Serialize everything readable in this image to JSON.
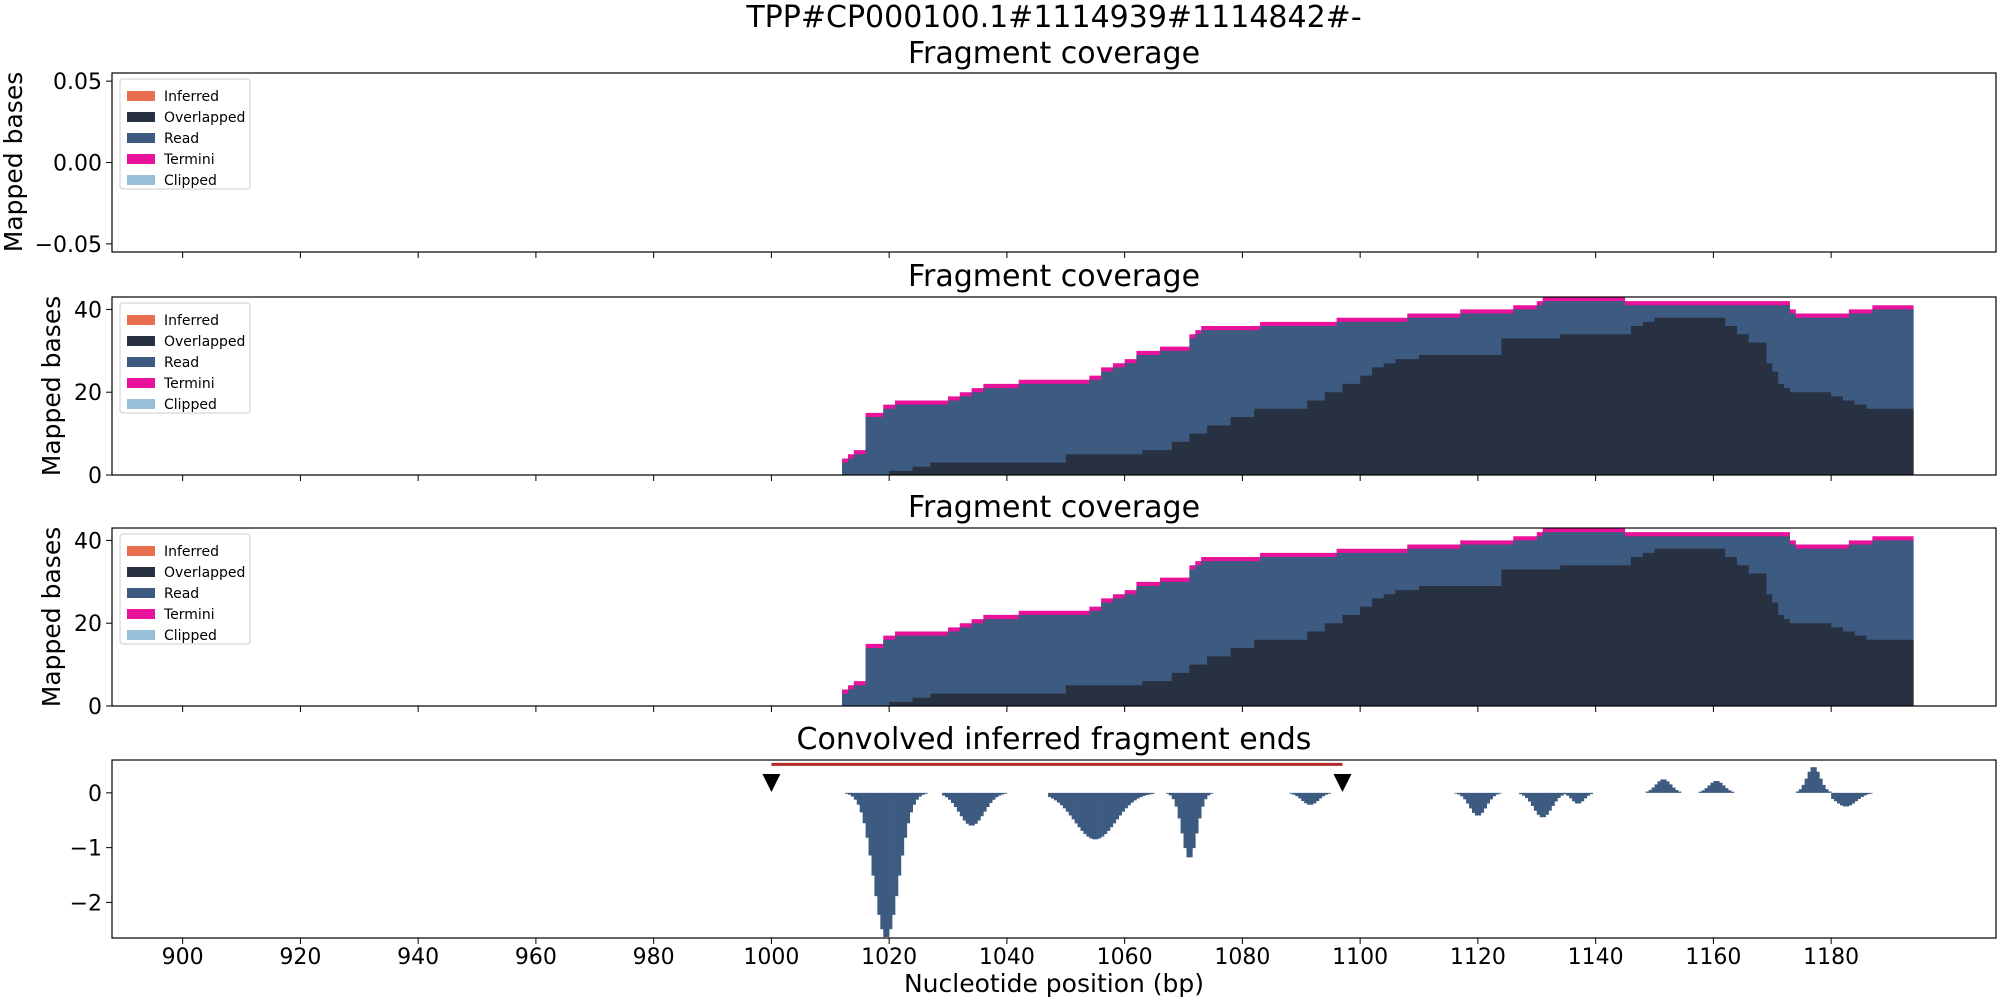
{
  "figure": {
    "title": "TPP#CP000100.1#1114939#1114842#-",
    "xlabel": "Nucleotide position (bp)",
    "xticks": [
      900,
      920,
      940,
      960,
      980,
      1000,
      1020,
      1040,
      1060,
      1080,
      1100,
      1120,
      1140,
      1160,
      1180
    ],
    "xlim": [
      888,
      1208
    ]
  },
  "chart_data": [
    {
      "type": "area",
      "title": "Fragment coverage",
      "ylabel": "Mapped bases",
      "ylim": [
        -0.055,
        0.055
      ],
      "yticks": [
        0.05,
        0.0,
        -0.05
      ],
      "ytick_labels": [
        "0.05",
        "0.00",
        "−0.05"
      ],
      "legend": {
        "position": "upper-left",
        "entries": [
          {
            "label": "Inferred",
            "color": "#e8704f"
          },
          {
            "label": "Overlapped",
            "color": "#283142"
          },
          {
            "label": "Read",
            "color": "#3d5a80"
          },
          {
            "label": "Termini",
            "color": "#e9129b"
          },
          {
            "label": "Clipped",
            "color": "#98c1d9"
          }
        ]
      },
      "series": []
    },
    {
      "type": "area",
      "title": "Fragment coverage",
      "ylabel": "Mapped bases",
      "ylim": [
        0,
        43
      ],
      "yticks": [
        0,
        20,
        40
      ],
      "ytick_labels": [
        "0",
        "20",
        "40"
      ],
      "legend": {
        "position": "upper-left",
        "entries": [
          {
            "label": "Inferred",
            "color": "#e8704f"
          },
          {
            "label": "Overlapped",
            "color": "#283142"
          },
          {
            "label": "Read",
            "color": "#3d5a80"
          },
          {
            "label": "Termini",
            "color": "#e9129b"
          },
          {
            "label": "Clipped",
            "color": "#98c1d9"
          }
        ]
      },
      "x_total": [
        1012,
        1013,
        1014,
        1016,
        1019,
        1020,
        1021,
        1022,
        1030,
        1032,
        1034,
        1036,
        1042,
        1054,
        1056,
        1058,
        1060,
        1062,
        1066,
        1071,
        1072,
        1073,
        1083,
        1096,
        1108,
        1117,
        1119,
        1126,
        1130,
        1131,
        1142,
        1144,
        1145,
        1158,
        1172,
        1173,
        1174,
        1178,
        1179,
        1183,
        1184,
        1187,
        1194
      ],
      "y_total": [
        4,
        5,
        6,
        15,
        17,
        17,
        18,
        18,
        19,
        20,
        21,
        22,
        23,
        24,
        26,
        27,
        28,
        30,
        31,
        34,
        35,
        36,
        37,
        38,
        39,
        40,
        40,
        41,
        42,
        43,
        43,
        43,
        42,
        42,
        42,
        40,
        39,
        39,
        39,
        40,
        40,
        41,
        41
      ],
      "x_overlap": [
        1012,
        1020,
        1024,
        1027,
        1050,
        1063,
        1068,
        1071,
        1074,
        1078,
        1082,
        1091,
        1094,
        1097,
        1100,
        1102,
        1104,
        1106,
        1110,
        1124,
        1134,
        1146,
        1148,
        1150,
        1162,
        1164,
        1166,
        1169,
        1170,
        1171,
        1172,
        1173,
        1175,
        1180,
        1182,
        1184,
        1186,
        1194
      ],
      "y_overlap": [
        0,
        1,
        2,
        3,
        5,
        6,
        8,
        10,
        12,
        14,
        16,
        18,
        20,
        22,
        24,
        26,
        27,
        28,
        29,
        33,
        34,
        36,
        37,
        38,
        36,
        34,
        32,
        27,
        25,
        22,
        21,
        20,
        20,
        19,
        18,
        17,
        16,
        16
      ],
      "termini_thickness": 1
    },
    {
      "type": "area",
      "title": "Fragment coverage",
      "ylabel": "Mapped bases",
      "ylim": [
        0,
        43
      ],
      "yticks": [
        0,
        20,
        40
      ],
      "ytick_labels": [
        "0",
        "20",
        "40"
      ],
      "legend": {
        "position": "upper-left",
        "entries": [
          {
            "label": "Inferred",
            "color": "#e8704f"
          },
          {
            "label": "Overlapped",
            "color": "#283142"
          },
          {
            "label": "Read",
            "color": "#3d5a80"
          },
          {
            "label": "Termini",
            "color": "#e9129b"
          },
          {
            "label": "Clipped",
            "color": "#98c1d9"
          }
        ]
      },
      "x_total": [
        1012,
        1013,
        1014,
        1016,
        1019,
        1020,
        1021,
        1022,
        1030,
        1032,
        1034,
        1036,
        1042,
        1054,
        1056,
        1058,
        1060,
        1062,
        1066,
        1071,
        1072,
        1073,
        1083,
        1096,
        1108,
        1117,
        1119,
        1126,
        1130,
        1131,
        1142,
        1144,
        1145,
        1158,
        1172,
        1173,
        1174,
        1178,
        1179,
        1183,
        1184,
        1187,
        1194
      ],
      "y_total": [
        4,
        5,
        6,
        15,
        17,
        17,
        18,
        18,
        19,
        20,
        21,
        22,
        23,
        24,
        26,
        27,
        28,
        30,
        31,
        34,
        35,
        36,
        37,
        38,
        39,
        40,
        40,
        41,
        42,
        43,
        43,
        43,
        42,
        42,
        42,
        40,
        39,
        39,
        39,
        40,
        40,
        41,
        41
      ],
      "x_overlap": [
        1012,
        1020,
        1024,
        1027,
        1050,
        1063,
        1068,
        1071,
        1074,
        1078,
        1082,
        1091,
        1094,
        1097,
        1100,
        1102,
        1104,
        1106,
        1110,
        1124,
        1134,
        1146,
        1148,
        1150,
        1162,
        1164,
        1166,
        1169,
        1170,
        1171,
        1172,
        1173,
        1175,
        1180,
        1182,
        1184,
        1186,
        1194
      ],
      "y_overlap": [
        0,
        1,
        2,
        3,
        5,
        6,
        8,
        10,
        12,
        14,
        16,
        18,
        20,
        22,
        24,
        26,
        27,
        28,
        29,
        33,
        34,
        36,
        37,
        38,
        36,
        34,
        32,
        27,
        25,
        22,
        21,
        20,
        20,
        19,
        18,
        17,
        16,
        16
      ],
      "termini_thickness": 1
    },
    {
      "type": "bar",
      "title": "Convolved inferred fragment ends",
      "ylim": [
        -2.65,
        0.6
      ],
      "yticks": [
        0,
        -1,
        -2
      ],
      "ytick_labels": [
        "0",
        "−1",
        "−2"
      ],
      "bar_color": "#3d5a80",
      "bars": [
        {
          "x0": 1009,
          "x1": 1027,
          "peak": -2.65,
          "center": 1019.5,
          "width": 3
        },
        {
          "x0": 1029,
          "x1": 1041,
          "peak": -0.6,
          "center": 1034,
          "width": 3
        },
        {
          "x0": 1047,
          "x1": 1065,
          "peak": -0.85,
          "center": 1055,
          "width": 5
        },
        {
          "x0": 1066,
          "x1": 1076,
          "peak": -1.2,
          "center": 1071,
          "width": 1.8
        },
        {
          "x0": 1088,
          "x1": 1095,
          "peak": -0.22,
          "center": 1091.5,
          "width": 2
        },
        {
          "x0": 1115,
          "x1": 1124,
          "peak": -0.42,
          "center": 1120,
          "width": 2
        },
        {
          "x0": 1127,
          "x1": 1139,
          "peak": -0.45,
          "center": 1131,
          "width": 2.2
        },
        {
          "x0": 1134,
          "x1": 1140,
          "peak": -0.2,
          "center": 1137,
          "width": 1.5
        },
        {
          "x0": 1148,
          "x1": 1155,
          "peak": 0.25,
          "center": 1151.5,
          "width": 1.8
        },
        {
          "x0": 1157,
          "x1": 1164,
          "peak": 0.22,
          "center": 1160.5,
          "width": 1.8
        },
        {
          "x0": 1173,
          "x1": 1180,
          "peak": 0.48,
          "center": 1177,
          "width": 1.6
        },
        {
          "x0": 1180,
          "x1": 1192,
          "peak": -0.25,
          "center": 1182.5,
          "width": 2.5
        }
      ],
      "annotations": {
        "markers": [
          {
            "x": 1000,
            "y": 0.18
          },
          {
            "x": 1097,
            "y": 0.18
          }
        ],
        "span": {
          "x0": 1000,
          "x1": 1097,
          "y": 0.52,
          "color": "#b52a2a"
        }
      }
    }
  ]
}
